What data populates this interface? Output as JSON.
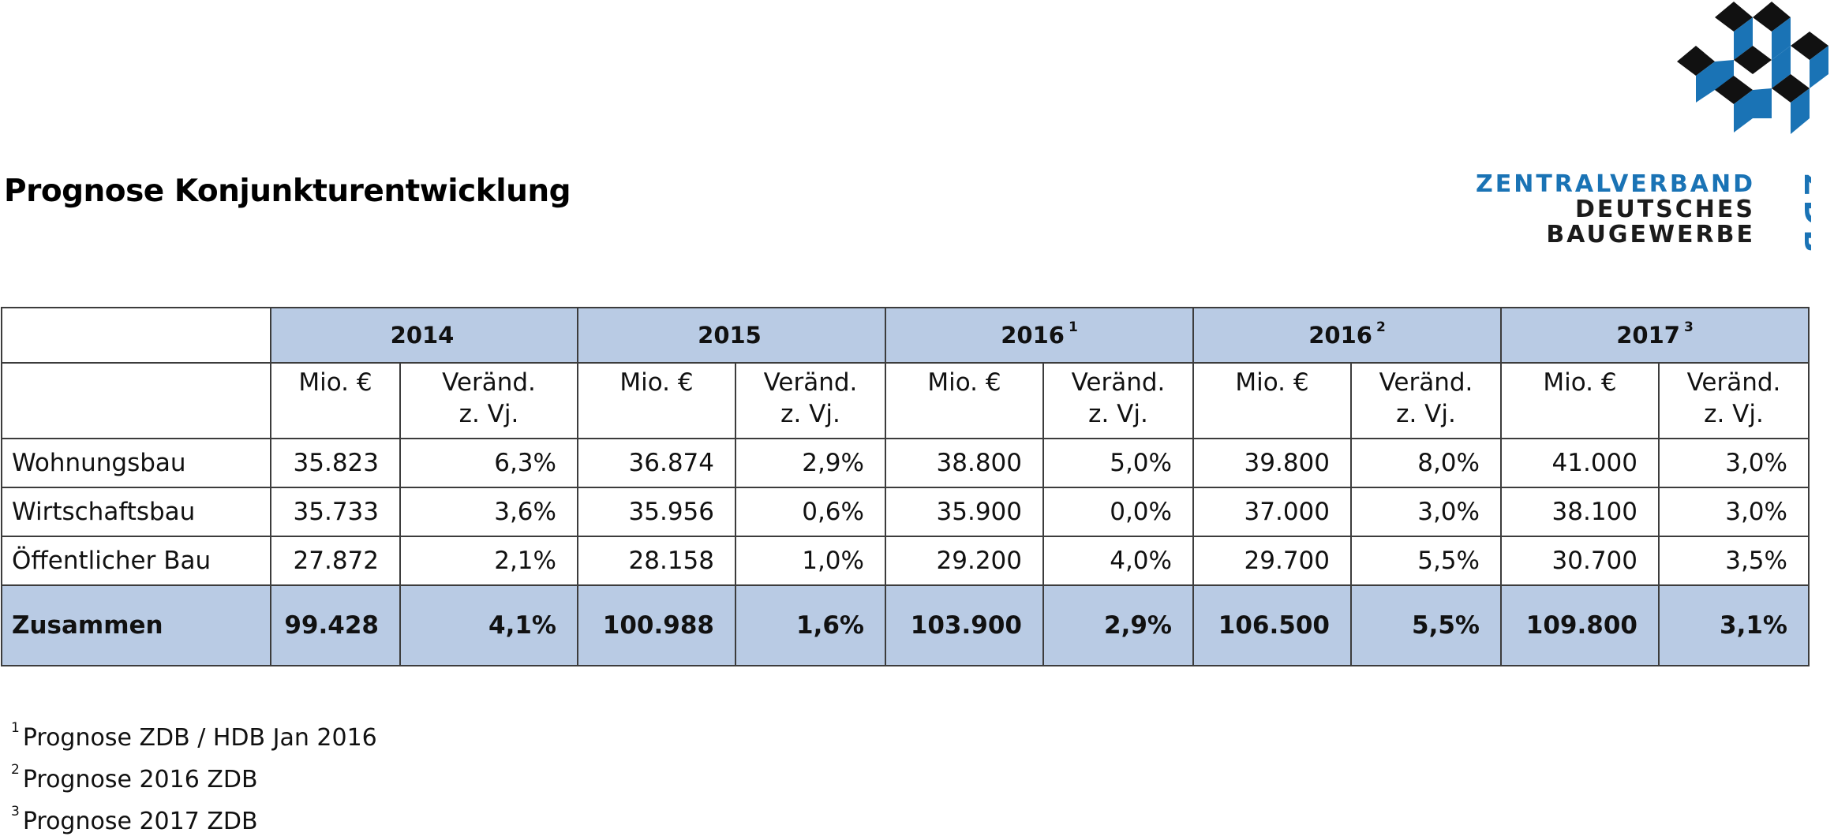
{
  "title": "Prognose Konjunkturentwicklung",
  "logo": {
    "line1": "ZENTRALVERBAND",
    "line2": "DEUTSCHES",
    "line3": "BAUGEWERBE",
    "abbrev": "ZDB",
    "colors": {
      "blue": "#1a73b5",
      "black": "#1b1b1b"
    }
  },
  "colors": {
    "header_fill": "#b9cbe4",
    "border": "#3c3c3c"
  },
  "table": {
    "years": [
      {
        "label": "2014",
        "sup": ""
      },
      {
        "label": "2015",
        "sup": ""
      },
      {
        "label": "2016",
        "sup": "1"
      },
      {
        "label": "2016",
        "sup": "2"
      },
      {
        "label": "2017",
        "sup": "3"
      }
    ],
    "units": {
      "value": "Mio. €",
      "change_1": "Veränd.",
      "change_2": "z. Vj."
    },
    "rows": [
      {
        "label": "Wohnungsbau",
        "cells": [
          "35.823",
          "6,3%",
          "36.874",
          "2,9%",
          "38.800",
          "5,0%",
          "39.800",
          "8,0%",
          "41.000",
          "3,0%"
        ]
      },
      {
        "label": "Wirtschaftsbau",
        "cells": [
          "35.733",
          "3,6%",
          "35.956",
          "0,6%",
          "35.900",
          "0,0%",
          "37.000",
          "3,0%",
          "38.100",
          "3,0%"
        ]
      },
      {
        "label": "Öffentlicher Bau",
        "cells": [
          "27.872",
          "2,1%",
          "28.158",
          "1,0%",
          "29.200",
          "4,0%",
          "29.700",
          "5,5%",
          "30.700",
          "3,5%"
        ]
      }
    ],
    "total": {
      "label": "Zusammen",
      "cells": [
        "99.428",
        "4,1%",
        "100.988",
        "1,6%",
        "103.900",
        "2,9%",
        "106.500",
        "5,5%",
        "109.800",
        "3,1%"
      ]
    }
  },
  "footnotes": [
    {
      "mark": "1",
      "text": "Prognose ZDB / HDB Jan 2016"
    },
    {
      "mark": "2",
      "text": "Prognose 2016 ZDB"
    },
    {
      "mark": "3",
      "text": "Prognose 2017 ZDB"
    }
  ]
}
